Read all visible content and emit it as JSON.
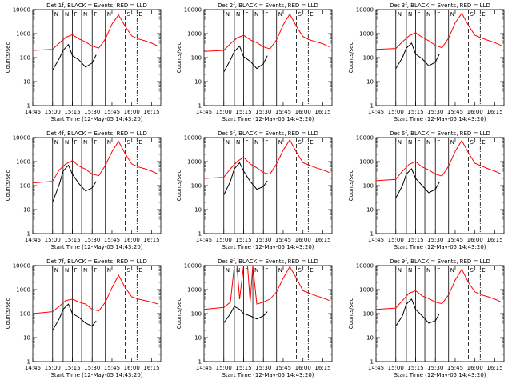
{
  "chart_data": [
    {
      "type": "line",
      "title": "Det  1f, BLACK = Events, RED = LLD",
      "xlabel": "Start Time (12-May-05 14:43:20)",
      "ylabel": "Counts/sec",
      "yscale": "log",
      "ylim": [
        1,
        10000
      ],
      "xtick_labels": [
        "14:45",
        "15:00",
        "15:15",
        "15:30",
        "15:45",
        "16:00",
        "16:15"
      ],
      "ytick_labels": [
        "1",
        "10",
        "100",
        "1000",
        "10000"
      ],
      "markers": [
        "N",
        "N",
        "F",
        "N",
        "F",
        "N",
        "S",
        "E"
      ],
      "series": [
        {
          "color": "#000000",
          "x": [
            "14:45",
            "15:00",
            "15:05",
            "15:08",
            "15:12",
            "15:15",
            "15:20",
            "15:25",
            "15:30",
            "15:33",
            "15:36"
          ],
          "y": [
            null,
            30,
            90,
            200,
            350,
            120,
            80,
            40,
            60,
            130,
            null
          ]
        },
        {
          "color": "#ff0000",
          "x": [
            "14:45",
            "15:00",
            "15:05",
            "15:10",
            "15:15",
            "15:20",
            "15:25",
            "15:30",
            "15:35",
            "15:40",
            "15:45",
            "15:50",
            "15:55",
            "16:00",
            "16:05",
            "16:10",
            "16:15",
            "16:20"
          ],
          "y": [
            200,
            220,
            400,
            700,
            900,
            600,
            450,
            300,
            250,
            600,
            2500,
            6000,
            2000,
            800,
            600,
            500,
            400,
            300
          ]
        }
      ]
    },
    {
      "type": "line",
      "title": "Det  2f, BLACK = Events, RED = LLD",
      "xlabel": "Start Time (12-May-05 14:43:20)",
      "ylabel": "Counts/sec",
      "yscale": "log",
      "ylim": [
        1,
        10000
      ],
      "xtick_labels": [
        "14:45",
        "15:00",
        "15:15",
        "15:30",
        "15:45",
        "16:00",
        "16:15"
      ],
      "ytick_labels": [
        "1",
        "10",
        "100",
        "1000",
        "10000"
      ],
      "markers": [
        "N",
        "N",
        "F",
        "N",
        "F",
        "N",
        "S",
        "E"
      ],
      "series": [
        {
          "color": "#000000",
          "x": [
            "14:45",
            "15:00",
            "15:05",
            "15:08",
            "15:12",
            "15:15",
            "15:20",
            "15:25",
            "15:30",
            "15:33",
            "15:36"
          ],
          "y": [
            null,
            25,
            80,
            180,
            300,
            110,
            70,
            35,
            55,
            120,
            null
          ]
        },
        {
          "color": "#ff0000",
          "x": [
            "14:45",
            "15:00",
            "15:05",
            "15:10",
            "15:15",
            "15:20",
            "15:25",
            "15:30",
            "15:35",
            "15:40",
            "15:45",
            "15:50",
            "15:55",
            "16:00",
            "16:05",
            "16:10",
            "16:15",
            "16:20"
          ],
          "y": [
            180,
            200,
            380,
            650,
            850,
            550,
            420,
            280,
            230,
            550,
            2300,
            6500,
            2000,
            750,
            550,
            450,
            380,
            280
          ]
        }
      ]
    },
    {
      "type": "line",
      "title": "Det  3f, BLACK = Events, RED = LLD",
      "xlabel": "Start Time (12-May-05 14:43:20)",
      "ylabel": "Counts/sec",
      "yscale": "log",
      "ylim": [
        1,
        10000
      ],
      "xtick_labels": [
        "14:45",
        "15:00",
        "15:15",
        "15:30",
        "15:45",
        "16:00",
        "16:15"
      ],
      "ytick_labels": [
        "1",
        "10",
        "100",
        "1000",
        "10000"
      ],
      "markers": [
        "N",
        "N",
        "F",
        "N",
        "F",
        "N",
        "S",
        "E"
      ],
      "series": [
        {
          "color": "#000000",
          "x": [
            "14:45",
            "15:00",
            "15:05",
            "15:08",
            "15:12",
            "15:15",
            "15:20",
            "15:25",
            "15:30",
            "15:33",
            "15:36"
          ],
          "y": [
            null,
            35,
            100,
            250,
            400,
            140,
            90,
            45,
            65,
            140,
            null
          ]
        },
        {
          "color": "#ff0000",
          "x": [
            "14:45",
            "15:00",
            "15:05",
            "15:10",
            "15:15",
            "15:20",
            "15:25",
            "15:30",
            "15:35",
            "15:40",
            "15:45",
            "15:50",
            "15:55",
            "16:00",
            "16:05",
            "16:10",
            "16:15",
            "16:20"
          ],
          "y": [
            220,
            240,
            450,
            800,
            1100,
            700,
            500,
            320,
            260,
            650,
            2800,
            7000,
            2200,
            850,
            650,
            520,
            420,
            320
          ]
        }
      ]
    },
    {
      "type": "line",
      "title": "Det  4f, BLACK = Events, RED = LLD",
      "xlabel": "Start Time (12-May-05 14:43:20)",
      "ylabel": "Counts/sec",
      "yscale": "log",
      "ylim": [
        1,
        10000
      ],
      "xtick_labels": [
        "14:45",
        "15:00",
        "15:15",
        "15:30",
        "15:45",
        "16:00",
        "16:15"
      ],
      "ytick_labels": [
        "1",
        "10",
        "100",
        "1000",
        "10000"
      ],
      "markers": [
        "N",
        "N",
        "F",
        "N",
        "F",
        "N",
        "S",
        "E"
      ],
      "series": [
        {
          "color": "#000000",
          "x": [
            "14:45",
            "15:00",
            "15:05",
            "15:08",
            "15:12",
            "15:15",
            "15:20",
            "15:25",
            "15:30",
            "15:33",
            "15:36"
          ],
          "y": [
            null,
            20,
            110,
            400,
            700,
            300,
            120,
            60,
            80,
            150,
            null
          ]
        },
        {
          "color": "#ff0000",
          "x": [
            "14:45",
            "15:00",
            "15:05",
            "15:10",
            "15:15",
            "15:20",
            "15:25",
            "15:30",
            "15:35",
            "15:40",
            "15:45",
            "15:50",
            "15:55",
            "16:00",
            "16:05",
            "16:10",
            "16:15",
            "16:20"
          ],
          "y": [
            130,
            150,
            450,
            800,
            1100,
            650,
            480,
            300,
            260,
            700,
            2600,
            7000,
            2100,
            800,
            600,
            500,
            400,
            300
          ]
        }
      ]
    },
    {
      "type": "line",
      "title": "Det  5f, BLACK = Events, RED = LLD",
      "xlabel": "Start Time (12-May-05 14:43:20)",
      "ylabel": "Counts/sec",
      "yscale": "log",
      "ylim": [
        1,
        10000
      ],
      "xtick_labels": [
        "14:45",
        "15:00",
        "15:15",
        "15:30",
        "15:45",
        "16:00",
        "16:15"
      ],
      "ytick_labels": [
        "1",
        "10",
        "100",
        "1000",
        "10000"
      ],
      "markers": [
        "N",
        "N",
        "F",
        "N",
        "F",
        "N",
        "S",
        "E"
      ],
      "series": [
        {
          "color": "#000000",
          "x": [
            "14:45",
            "15:00",
            "15:05",
            "15:08",
            "15:12",
            "15:15",
            "15:20",
            "15:25",
            "15:30",
            "15:33",
            "15:36"
          ],
          "y": [
            null,
            40,
            150,
            500,
            900,
            400,
            150,
            70,
            90,
            160,
            null
          ]
        },
        {
          "color": "#ff0000",
          "x": [
            "14:45",
            "15:00",
            "15:05",
            "15:10",
            "15:15",
            "15:20",
            "15:25",
            "15:30",
            "15:35",
            "15:40",
            "15:45",
            "15:50",
            "15:55",
            "16:00",
            "16:05",
            "16:10",
            "16:15",
            "16:20"
          ],
          "y": [
            200,
            220,
            500,
            1000,
            1500,
            800,
            550,
            350,
            300,
            800,
            3000,
            8000,
            2500,
            900,
            700,
            550,
            450,
            350
          ]
        }
      ]
    },
    {
      "type": "line",
      "title": "Det  6f, BLACK = Events, RED = LLD",
      "xlabel": "Start Time (12-May-05 14:43:20)",
      "ylabel": "Counts/sec",
      "yscale": "log",
      "ylim": [
        1,
        10000
      ],
      "xtick_labels": [
        "14:45",
        "15:00",
        "15:15",
        "15:30",
        "15:45",
        "16:00",
        "16:15"
      ],
      "ytick_labels": [
        "1",
        "10",
        "100",
        "1000",
        "10000"
      ],
      "markers": [
        "N",
        "N",
        "F",
        "N",
        "F",
        "N",
        "S",
        "E"
      ],
      "series": [
        {
          "color": "#000000",
          "x": [
            "14:45",
            "15:00",
            "15:05",
            "15:08",
            "15:12",
            "15:15",
            "15:20",
            "15:25",
            "15:30",
            "15:33",
            "15:36"
          ],
          "y": [
            null,
            30,
            100,
            300,
            500,
            200,
            100,
            50,
            70,
            140,
            null
          ]
        },
        {
          "color": "#ff0000",
          "x": [
            "14:45",
            "15:00",
            "15:05",
            "15:10",
            "15:15",
            "15:20",
            "15:25",
            "15:30",
            "15:35",
            "15:40",
            "15:45",
            "15:50",
            "15:55",
            "16:00",
            "16:05",
            "16:10",
            "16:15",
            "16:20"
          ],
          "y": [
            160,
            180,
            400,
            750,
            1000,
            600,
            450,
            300,
            250,
            650,
            2700,
            7500,
            2300,
            850,
            650,
            500,
            400,
            300
          ]
        }
      ]
    },
    {
      "type": "line",
      "title": "Det  7f, BLACK = Events, RED = LLD",
      "xlabel": "Start Time (12-May-05 14:43:20)",
      "ylabel": "Counts/sec",
      "yscale": "log",
      "ylim": [
        1,
        10000
      ],
      "xtick_labels": [
        "14:45",
        "15:00",
        "15:15",
        "15:30",
        "15:45",
        "16:00",
        "16:15"
      ],
      "ytick_labels": [
        "1",
        "10",
        "100",
        "1000",
        "10000"
      ],
      "markers": [
        "N",
        "N",
        "F",
        "N",
        "F",
        "N",
        "S",
        "E"
      ],
      "series": [
        {
          "color": "#000000",
          "x": [
            "14:45",
            "15:00",
            "15:05",
            "15:08",
            "15:12",
            "15:15",
            "15:20",
            "15:25",
            "15:30",
            "15:33",
            "15:36"
          ],
          "y": [
            null,
            20,
            60,
            150,
            250,
            100,
            70,
            40,
            30,
            50,
            null
          ]
        },
        {
          "color": "#ff0000",
          "x": [
            "14:45",
            "15:00",
            "15:05",
            "15:10",
            "15:15",
            "15:20",
            "15:25",
            "15:30",
            "15:35",
            "15:40",
            "15:45",
            "15:50",
            "15:55",
            "16:00",
            "16:05",
            "16:10",
            "16:15",
            "16:20"
          ],
          "y": [
            100,
            120,
            200,
            350,
            400,
            300,
            250,
            150,
            130,
            300,
            1200,
            4000,
            1200,
            500,
            400,
            350,
            300,
            250
          ]
        }
      ]
    },
    {
      "type": "line",
      "title": "Det  8f, BLACK = Events, RED = LLD",
      "xlabel": "Start Time (12-May-05 14:43:20)",
      "ylabel": "Counts/sec",
      "yscale": "log",
      "ylim": [
        1,
        10000
      ],
      "xtick_labels": [
        "14:45",
        "15:00",
        "15:15",
        "15:30",
        "15:45",
        "16:00",
        "16:15"
      ],
      "ytick_labels": [
        "1",
        "10",
        "100",
        "1000",
        "10000"
      ],
      "markers": [
        "N",
        "N",
        "F",
        "N",
        "F",
        "N",
        "S",
        "E"
      ],
      "series": [
        {
          "color": "#000000",
          "x": [
            "14:45",
            "15:00",
            "15:05",
            "15:08",
            "15:12",
            "15:15",
            "15:20",
            "15:25",
            "15:30",
            "15:33",
            "15:36"
          ],
          "y": [
            null,
            40,
            100,
            200,
            150,
            100,
            80,
            60,
            80,
            120,
            null
          ]
        },
        {
          "color": "#ff0000",
          "x": [
            "14:45",
            "15:00",
            "15:05",
            "15:08",
            "15:10",
            "15:12",
            "15:15",
            "15:18",
            "15:20",
            "15:22",
            "15:25",
            "15:30",
            "15:35",
            "15:40",
            "15:45",
            "15:50",
            "15:55",
            "16:00",
            "16:05",
            "16:10",
            "16:15",
            "16:20"
          ],
          "y": [
            150,
            180,
            300,
            12000,
            12000,
            400,
            12000,
            12000,
            300,
            12000,
            250,
            300,
            400,
            800,
            3000,
            9000,
            3000,
            900,
            700,
            550,
            450,
            350
          ]
        }
      ]
    },
    {
      "type": "line",
      "title": "Det  9f, BLACK = Events, RED = LLD",
      "xlabel": "Start Time (12-May-05 14:43:20)",
      "ylabel": "Counts/sec",
      "yscale": "log",
      "ylim": [
        1,
        10000
      ],
      "xtick_labels": [
        "14:45",
        "15:00",
        "15:15",
        "15:30",
        "15:45",
        "16:00",
        "16:15"
      ],
      "ytick_labels": [
        "1",
        "10",
        "100",
        "1000",
        "10000"
      ],
      "markers": [
        "N",
        "N",
        "F",
        "N",
        "F",
        "N",
        "S",
        "E"
      ],
      "series": [
        {
          "color": "#000000",
          "x": [
            "14:45",
            "15:00",
            "15:05",
            "15:08",
            "15:12",
            "15:15",
            "15:20",
            "15:25",
            "15:30",
            "15:33",
            "15:36"
          ],
          "y": [
            null,
            30,
            80,
            250,
            400,
            150,
            80,
            40,
            50,
            100,
            null
          ]
        },
        {
          "color": "#ff0000",
          "x": [
            "14:45",
            "15:00",
            "15:05",
            "15:10",
            "15:15",
            "15:20",
            "15:25",
            "15:30",
            "15:35",
            "15:40",
            "15:45",
            "15:50",
            "15:55",
            "16:00",
            "16:05",
            "16:10",
            "16:15",
            "16:20"
          ],
          "y": [
            150,
            170,
            350,
            700,
            900,
            550,
            420,
            300,
            260,
            600,
            2500,
            7000,
            2000,
            800,
            600,
            500,
            400,
            300
          ]
        }
      ]
    }
  ]
}
